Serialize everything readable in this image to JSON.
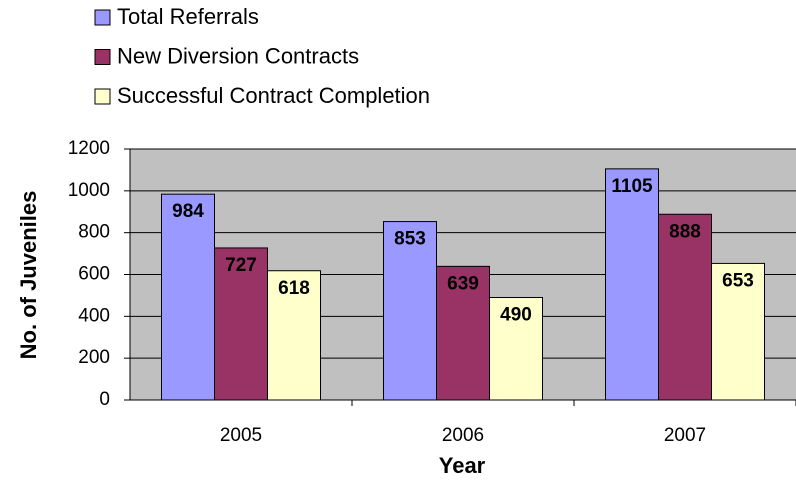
{
  "chart_data": {
    "type": "bar",
    "categories": [
      "2005",
      "2006",
      "2007"
    ],
    "series": [
      {
        "name": "Total Referrals",
        "color": "#9999ff",
        "values": [
          984,
          853,
          1105
        ]
      },
      {
        "name": "New Diversion Contracts",
        "color": "#993366",
        "values": [
          727,
          639,
          888
        ]
      },
      {
        "name": "Successful Contract Completion",
        "color": "#ffffcc",
        "values": [
          618,
          490,
          653
        ]
      }
    ],
    "x_label": "Year",
    "y_label": "No. of Juveniles",
    "ylim": [
      0,
      1200
    ],
    "yticks": [
      0,
      200,
      400,
      600,
      800,
      1000,
      1200
    ],
    "grid": true,
    "legend": "top",
    "plot_background": "#c0c0c0"
  }
}
